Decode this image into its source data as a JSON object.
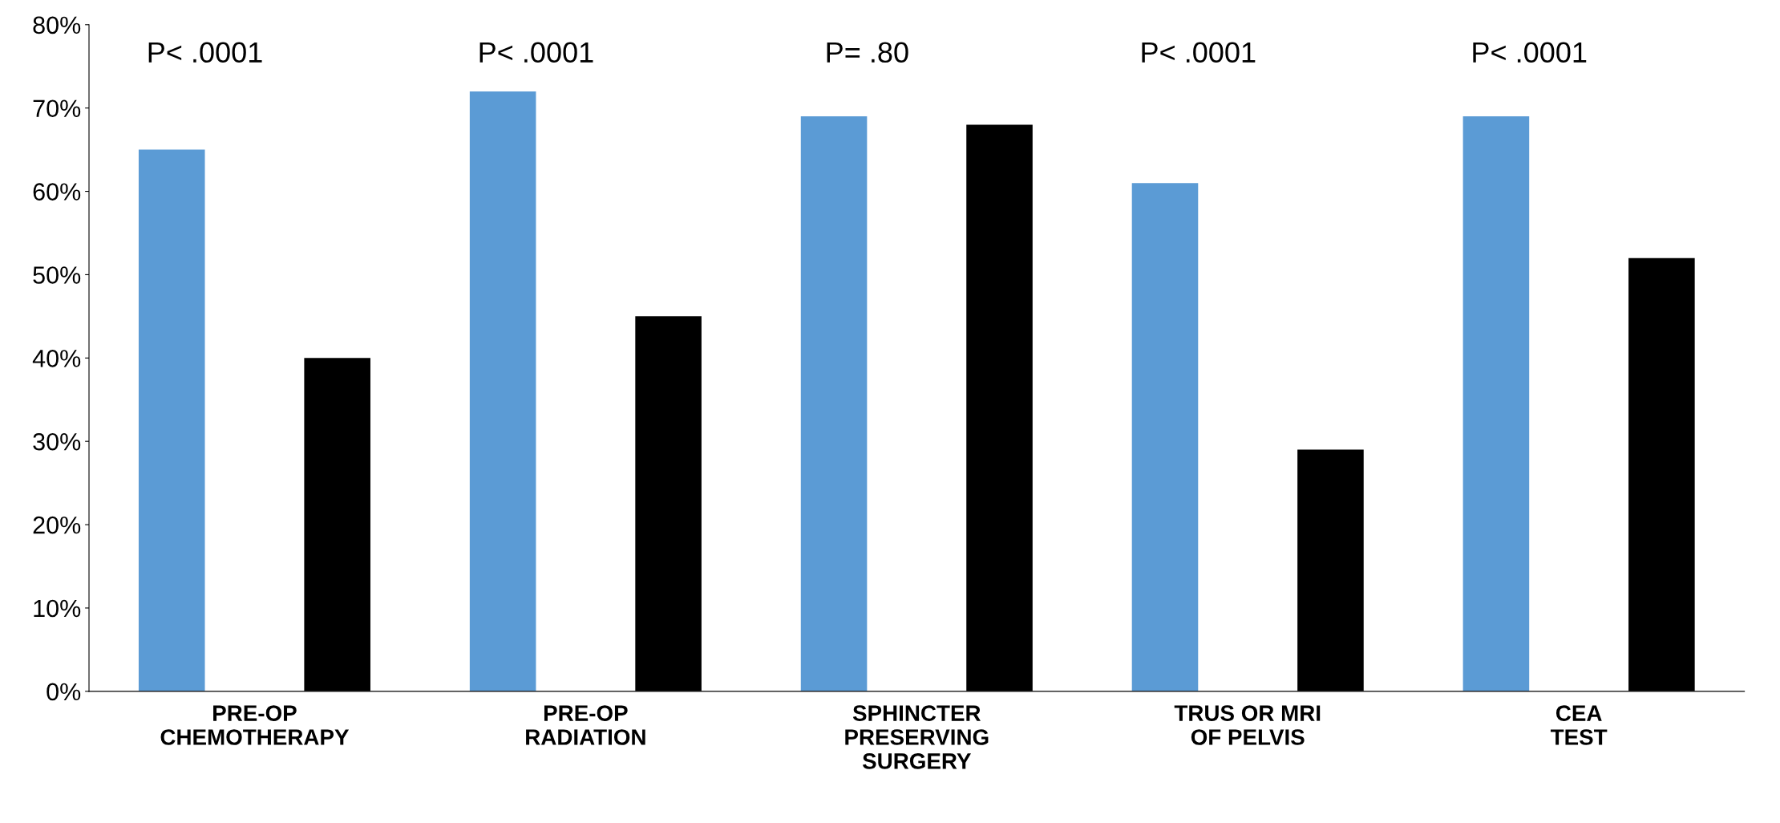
{
  "chart_data": {
    "type": "bar",
    "categories": [
      "PRE-OP\nCHEMOTHERAPY",
      "PRE-OP\nRADIATION",
      "SPHINCTER\nPRESERVING\nSURGERY",
      "TRUS OR MRI\nOF PELVIS",
      "CEA\nTEST"
    ],
    "series": [
      {
        "color": "#5b9bd5",
        "values": [
          65,
          72,
          69,
          61,
          69
        ]
      },
      {
        "color": "#000000",
        "values": [
          40,
          45,
          68,
          29,
          52
        ]
      }
    ],
    "annotations": [
      "P< .0001",
      "P< .0001",
      "P= .80",
      "P< .0001",
      "P< .0001"
    ],
    "ylim": [
      0,
      80
    ],
    "yticks": [
      {
        "value": 0,
        "label": "0%"
      },
      {
        "value": 10,
        "label": "10%"
      },
      {
        "value": 20,
        "label": "20%"
      },
      {
        "value": 30,
        "label": "30%"
      },
      {
        "value": 40,
        "label": "40%"
      },
      {
        "value": 50,
        "label": "50%"
      },
      {
        "value": 60,
        "label": "60%"
      },
      {
        "value": 70,
        "label": "70%"
      },
      {
        "value": 80,
        "label": "80%"
      }
    ],
    "grid": false,
    "legend": false
  }
}
